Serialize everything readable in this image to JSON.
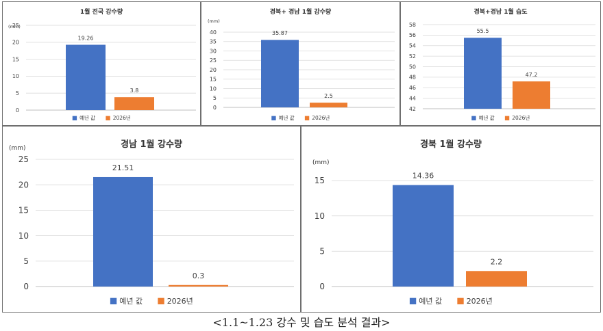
{
  "colors": {
    "normal": "#4472C4",
    "y2026": "#ED7D31",
    "axis": "#404040",
    "grid": "#d9d9d9"
  },
  "caption": "<1.1~1.23 강수 및 습도 분석 결과>",
  "chart_data": [
    {
      "type": "bar",
      "title": "1월 전국 강수량",
      "unit": "(mm)",
      "categories": [
        "예년 값",
        "2026년"
      ],
      "values": [
        19.26,
        3.8
      ],
      "value_labels": [
        "19.26",
        "3.8"
      ],
      "ylim": [
        0,
        25
      ],
      "yticks": [
        0,
        5,
        10,
        15,
        20,
        25
      ],
      "legend": [
        "예년 값",
        "2026년"
      ],
      "legend_position": "bottom"
    },
    {
      "type": "bar",
      "title": "경북+ 경남 1월 강수량",
      "unit": "(mm)",
      "categories": [
        "예년 값",
        "2026년"
      ],
      "values": [
        35.87,
        2.5
      ],
      "value_labels": [
        "35.87",
        "2.5"
      ],
      "ylim": [
        0,
        40
      ],
      "yticks": [
        0,
        5,
        10,
        15,
        20,
        25,
        30,
        35,
        40
      ],
      "legend": [
        "예년 값",
        "2026년"
      ],
      "legend_position": "bottom"
    },
    {
      "type": "bar",
      "title": "경북+경남 1월 습도",
      "unit": "",
      "categories": [
        "예년 값",
        "2026년"
      ],
      "values": [
        55.5,
        47.2
      ],
      "value_labels": [
        "55.5",
        "47.2"
      ],
      "ylim": [
        42,
        58
      ],
      "yticks": [
        42,
        44,
        46,
        48,
        50,
        52,
        54,
        56,
        58
      ],
      "legend": [
        "예년 값",
        "2026년"
      ],
      "legend_position": "bottom"
    },
    {
      "type": "bar",
      "title": "경남 1월 강수량",
      "unit": "(mm)",
      "categories": [
        "예년 값",
        "2026년"
      ],
      "values": [
        21.51,
        0.3
      ],
      "value_labels": [
        "21.51",
        "0.3"
      ],
      "ylim": [
        0,
        25
      ],
      "yticks": [
        0,
        5,
        10,
        15,
        20,
        25
      ],
      "legend": [
        "예년 값",
        "2026년"
      ],
      "legend_position": "bottom"
    },
    {
      "type": "bar",
      "title": "경북 1월 강수량",
      "unit": "(mm)",
      "categories": [
        "예년 값",
        "2026년"
      ],
      "values": [
        14.36,
        2.2
      ],
      "value_labels": [
        "14.36",
        "2.2"
      ],
      "ylim": [
        0,
        18
      ],
      "yticks": [
        0,
        5,
        10,
        15
      ],
      "legend": [
        "예년 값",
        "2026년"
      ],
      "legend_position": "bottom"
    }
  ]
}
